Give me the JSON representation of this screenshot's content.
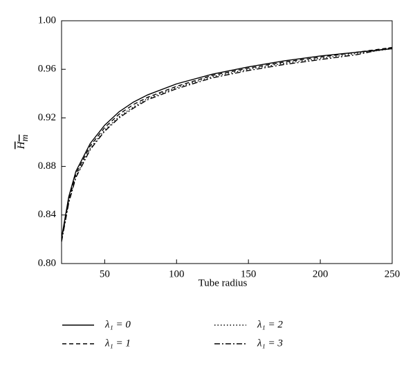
{
  "chart_data": {
    "type": "line",
    "x_label": "Tube radius",
    "y_label": {
      "main": "H",
      "sub": "m"
    },
    "x": [
      20,
      25,
      30,
      40,
      50,
      60,
      70,
      80,
      100,
      125,
      150,
      175,
      200,
      225,
      250
    ],
    "series": [
      {
        "name": "λ₁ = 0",
        "color": "#000000",
        "dash": "solid",
        "values": [
          0.821,
          0.855,
          0.876,
          0.899,
          0.914,
          0.925,
          0.933,
          0.939,
          0.948,
          0.956,
          0.962,
          0.967,
          0.971,
          0.974,
          0.977
        ]
      },
      {
        "name": "λ₁ = 1",
        "color": "#000000",
        "dash": "dashed",
        "values": [
          0.82,
          0.853,
          0.874,
          0.897,
          0.912,
          0.923,
          0.931,
          0.937,
          0.946,
          0.955,
          0.961,
          0.966,
          0.97,
          0.974,
          0.978
        ]
      },
      {
        "name": "λ₁ = 2",
        "color": "#000000",
        "dash": "dotted",
        "values": [
          0.819,
          0.851,
          0.872,
          0.895,
          0.91,
          0.921,
          0.929,
          0.936,
          0.945,
          0.954,
          0.96,
          0.965,
          0.969,
          0.973,
          0.977
        ]
      },
      {
        "name": "λ₁ = 3",
        "color": "#000000",
        "dash": "dashdot",
        "values": [
          0.818,
          0.85,
          0.871,
          0.894,
          0.909,
          0.92,
          0.928,
          0.935,
          0.944,
          0.953,
          0.959,
          0.964,
          0.968,
          0.972,
          0.978
        ]
      }
    ],
    "xlim": [
      20,
      250
    ],
    "xticks": [
      50,
      100,
      150,
      200,
      250
    ],
    "ylim": [
      0.8,
      1.0
    ],
    "yticks": [
      {
        "value": 0.8,
        "label": "0.80"
      },
      0.84,
      0.88,
      0.92,
      0.96,
      {
        "value": 1.0,
        "label": "1.00"
      }
    ],
    "grid": false,
    "legend": "bottom"
  }
}
